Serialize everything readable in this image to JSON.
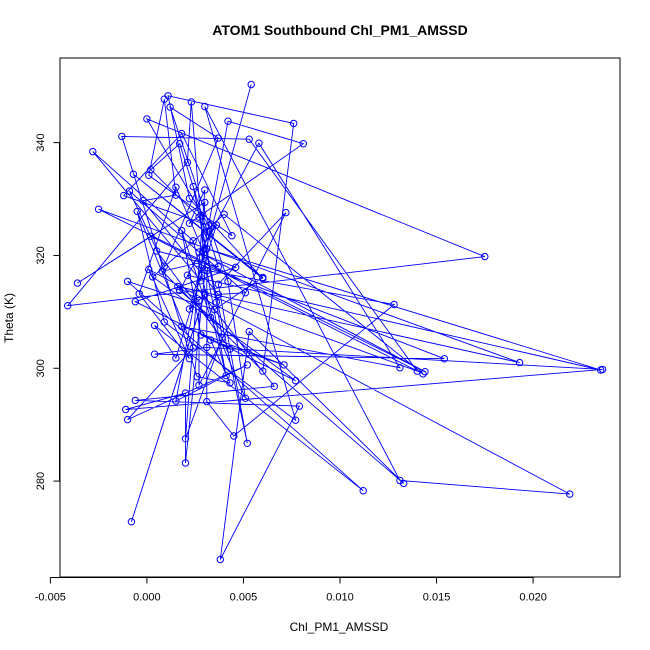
{
  "chart_data": {
    "type": "line",
    "title": "ATOM1 Southbound Chl_PM1_AMSSD",
    "xlabel": "Chl_PM1_AMSSD",
    "ylabel": "Theta (K)",
    "xlim": [
      -0.0045,
      0.0245
    ],
    "ylim": [
      263,
      355
    ],
    "xticks": [
      -0.005,
      0.0,
      0.005,
      0.01,
      0.015,
      0.02
    ],
    "xtick_labels": [
      "-0.005",
      "0.000",
      "0.005",
      "0.010",
      "0.015",
      "0.020"
    ],
    "yticks": [
      280,
      300,
      320,
      340
    ],
    "ytick_labels": [
      "280",
      "300",
      "320",
      "340"
    ],
    "grid": false,
    "legend": "none",
    "marker": "open-circle",
    "colors": {
      "series": "#0000ff",
      "axes": "#000000",
      "background": "#ffffff"
    },
    "series": [
      {
        "x": [
          0.0054,
          0.0022,
          0.003,
          -0.0008,
          0.003,
          0.014,
          0.0053,
          -0.0013,
          0.0026,
          0.0043,
          0.0033,
          0.0071,
          0.0018,
          0.0131,
          0.0058,
          0.0017,
          0.0133,
          0.0053,
          0.0038,
          0.0079,
          -0.0006,
          0.0066,
          0.0021,
          0.0235,
          0.0031,
          0.0032,
          0.002,
          0.002,
          -0.0011,
          0.0236,
          0.0031,
          0.0004,
          0.0154,
          0.0026,
          0.0008,
          0.006,
          0.0076,
          0.0011,
          0.0022,
          0.006,
          -0.0007,
          0.006,
          0.0035,
          -0.001,
          0.0112,
          0.0004,
          0.0015,
          0.0036,
          0.0027,
          0.0144,
          -0.0025,
          0.0193,
          0.0016,
          0.0027,
          0.0027,
          0.0072,
          0.0037,
          0.0052,
          0.0024,
          0.0036,
          0.0039,
          0.002,
          0.003,
          0.0022,
          0.0081,
          0.0042,
          0.0015,
          0.0052,
          -0.001,
          0.0024,
          -0.0005,
          0.0009,
          0.0077,
          0.003,
          0.0131,
          0.0219,
          0.0001,
          0.0022,
          -0.0004,
          0.0015,
          0.003,
          0.0046,
          -0.0006,
          0.0077,
          0.0003,
          0.004,
          0.0143,
          0.0002,
          -0.0036,
          0.003,
          0.0028,
          -0.0028,
          0.0024,
          0.0041,
          0.0031,
          0.0031,
          0.0045,
          0.0128,
          0.003,
          0.0023,
          0.0021,
          -0.0041,
          0.0175,
          0.0,
          0.0032,
          -0.0012,
          0.0018,
          0.0044,
          0.0001,
          0.0009,
          0.0015,
          -0.0002,
          0.0037,
          0.0051,
          -0.0009,
          0.0009,
          0.0037,
          0.0012,
          0.0042,
          0.0051,
          0.0033,
          0.0018,
          0.0028,
          0.0043,
          0.0005,
          0.0037,
          0.0017,
          0.0002,
          0.0027,
          0.0031
        ],
        "y": [
          350.3,
          310.5,
          313.1,
          272.8,
          313.2,
          299.5,
          340.6,
          341.1,
          298.5,
          297.4,
          305.0,
          300.6,
          307.4,
          300.1,
          339.9,
          313.8,
          279.6,
          306.5,
          266.1,
          293.3,
          294.3,
          296.8,
          316.5,
          299.7,
          321.2,
          323.6,
          283.2,
          295.6,
          292.7,
          299.8,
          303.7,
          302.5,
          301.7,
          318.6,
          317.2,
          299.5,
          343.4,
          348.3,
          330.1,
          315.9,
          334.4,
          316.1,
          310.4,
          315.4,
          278.3,
          307.6,
          301.8,
          325.4,
          320.6,
          299.4,
          328.2,
          301.0,
          314.5,
          312.0,
          297.0,
          327.6,
          314.9,
          286.7,
          332.2,
          311.7,
          305.4,
          287.5,
          331.6,
          325.7,
          339.8,
          343.8,
          294.2,
          300.6,
          290.9,
          303.6,
          327.8,
          308.2,
          290.8,
          346.4,
          280.1,
          277.7,
          317.5,
          301.7,
          313.2,
          332.1,
          320.1,
          317.9,
          311.8,
          297.8,
          316.2,
          327.3,
          299.0,
          323.4,
          315.1,
          329.4,
          315.5,
          338.4,
          322.6,
          298.7,
          317.3,
          294.1,
          288.0,
          311.3,
          317.4,
          347.2,
          336.5,
          311.1,
          319.8,
          344.2,
          325.3,
          330.6,
          341.6,
          323.5,
          334.2,
          347.7,
          330.7,
          329.7,
          313.1,
          313.4,
          331.4,
          318.1,
          340.8,
          346.3,
          315.4,
          294.7,
          309.0,
          324.4,
          305.9,
          303.4,
          320.8,
          318.0,
          339.8,
          335.2,
          326.8,
          324.2
        ]
      }
    ]
  }
}
